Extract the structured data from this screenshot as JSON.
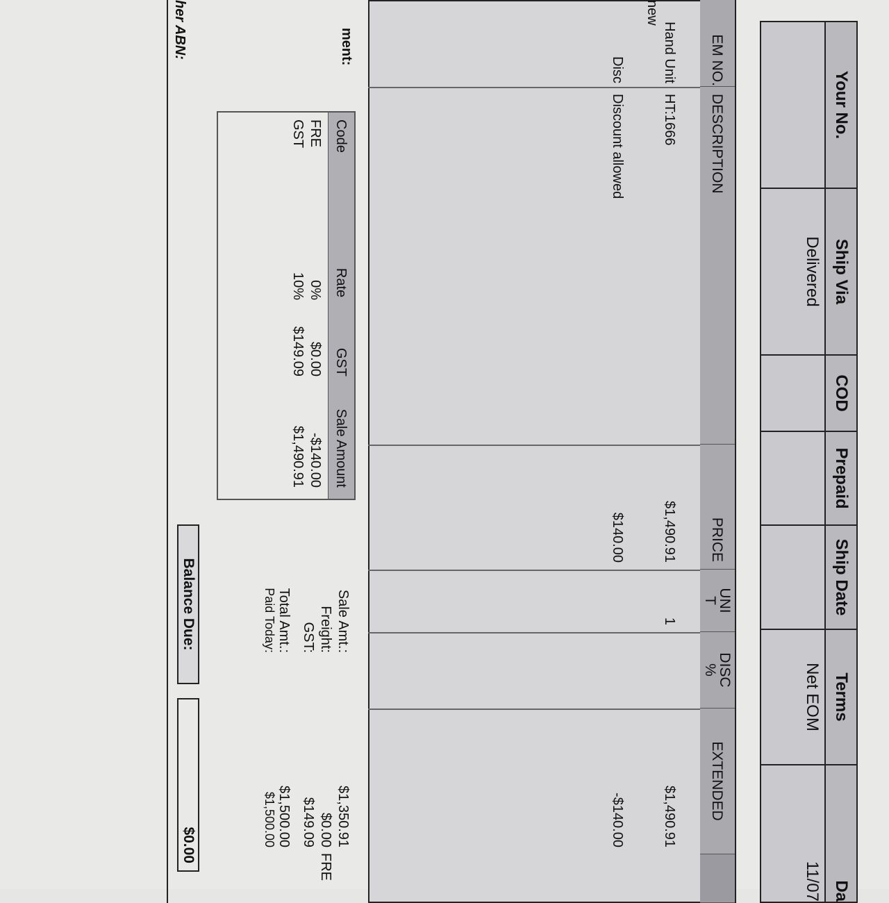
{
  "header": {
    "columns": [
      "Your No.",
      "Ship Via",
      "COD",
      "Prepaid",
      "Ship Date",
      "Terms",
      "Da"
    ],
    "values": [
      "",
      "Delivered",
      "",
      "",
      "",
      "Net EOM",
      "11/07"
    ]
  },
  "items": {
    "headers": [
      "EM NO.",
      "DESCRIPTION",
      "PRICE",
      "UNI T",
      "DISC %",
      "EXTENDED"
    ],
    "rows": [
      {
        "item": "Hand Unit",
        "item2": "new",
        "desc": "HT:1666",
        "price": "$1,490.91",
        "unit": "1",
        "disc": "",
        "ext": "$1,490.91"
      },
      {
        "item": "Disc",
        "item2": "",
        "desc": "Discount allowed",
        "price": "$140.00",
        "unit": "",
        "disc": "",
        "ext": "-$140.00"
      }
    ]
  },
  "summary": {
    "comment_label": "ment:",
    "abn_label": "her ABN:",
    "tax_table": {
      "headers": [
        "Code",
        "Rate",
        "GST",
        "Sale Amount"
      ],
      "rows": [
        [
          "FRE",
          "0%",
          "$0.00",
          "-$140.00"
        ],
        [
          "GST",
          "10%",
          "$149.09",
          "$1,490.91"
        ]
      ]
    },
    "totals": [
      {
        "label": "Sale Amt.:",
        "value": "$1,350.91"
      },
      {
        "label": "Freight:",
        "value": "$0.00",
        "code": "FRE"
      },
      {
        "label": "GST:",
        "value": "$149.09"
      },
      {
        "label": "Total Amt.:",
        "value": "$1,500.00"
      },
      {
        "label": "Paid Today:",
        "value": "$1,500.00"
      }
    ],
    "balance_label": "Balance Due:",
    "balance_value": "$0.00"
  }
}
